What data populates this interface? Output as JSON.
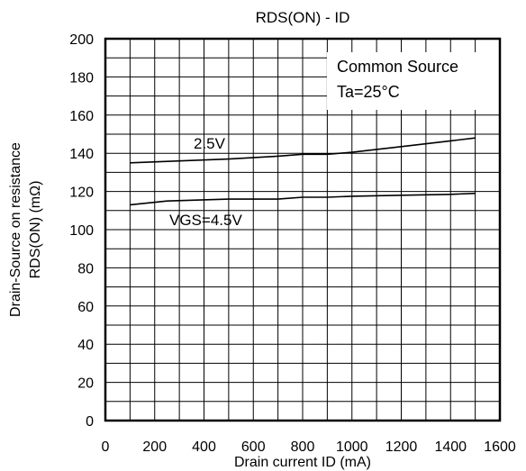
{
  "chart_data": {
    "type": "line",
    "title": "RDS(ON) - ID",
    "xlabel": "Drain current  ID (mA)",
    "ylabel_lines": [
      "Drain-Source on resistance",
      "RDS(ON)  (mΩ)"
    ],
    "xlim": [
      0,
      1600
    ],
    "ylim": [
      0,
      200
    ],
    "x_ticks": [
      0,
      200,
      400,
      600,
      800,
      1000,
      1200,
      1400,
      1600
    ],
    "y_ticks": [
      0,
      20,
      40,
      60,
      80,
      100,
      120,
      140,
      160,
      180,
      200
    ],
    "grid": true,
    "annotation_box": [
      "Common Source",
      "Ta=25°C"
    ],
    "series": [
      {
        "label": "2.5V",
        "x": [
          100,
          300,
          500,
          700,
          800,
          900,
          1000,
          1200,
          1400,
          1500
        ],
        "y": [
          135,
          136,
          137,
          138.5,
          139.5,
          139.5,
          140.5,
          143.5,
          146.5,
          148
        ]
      },
      {
        "label": "VGS=4.5V",
        "x": [
          100,
          250,
          500,
          700,
          800,
          900,
          1000,
          1200,
          1400,
          1500
        ],
        "y": [
          113,
          115,
          116,
          116,
          117,
          117,
          117.5,
          118,
          118.5,
          119
        ]
      }
    ]
  }
}
